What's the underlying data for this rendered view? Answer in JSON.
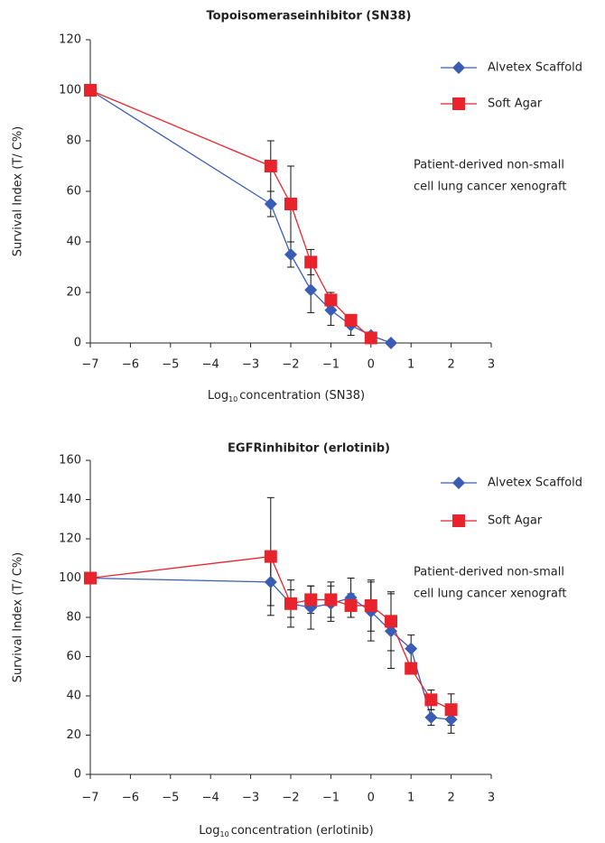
{
  "chart_data": [
    {
      "type": "line",
      "title": "Topoisomeraseinhibitor (SN38)",
      "xlabel": {
        "base": "Log",
        "sub": "10",
        "rest": "concentration  (SN38)"
      },
      "ylabel": "Survival Index (T/ C%)",
      "annotation": [
        "Patient-derived non-small",
        "cell lung cancer xenograft"
      ],
      "x": [
        -7,
        -2.5,
        -2,
        -1.5,
        -1,
        -0.5,
        0,
        0.5
      ],
      "series": [
        {
          "name": "Alvetex Scaffold",
          "color": "#3b5cb3",
          "marker": "diamond",
          "values": [
            100,
            55,
            35,
            21,
            13,
            7,
            3,
            0
          ],
          "errors": [
            null,
            5,
            5,
            9,
            6,
            4,
            1,
            null
          ]
        },
        {
          "name": "Soft Agar",
          "color": "#e8232b",
          "marker": "square",
          "values": [
            100,
            70,
            55,
            32,
            17,
            9,
            2,
            null
          ],
          "errors": [
            null,
            10,
            15,
            5,
            3,
            2,
            2,
            null
          ]
        }
      ],
      "xlim": [
        -7,
        3
      ],
      "xticks": [
        {
          "value": -7,
          "label": "−7"
        },
        {
          "value": -6,
          "label": "−6"
        },
        {
          "value": -5,
          "label": "−5"
        },
        {
          "value": -4,
          "label": "−4"
        },
        {
          "value": -3,
          "label": "−3"
        },
        {
          "value": -2,
          "label": "−2"
        },
        {
          "value": -1,
          "label": "−1"
        },
        0,
        1,
        2,
        3
      ],
      "ylim": [
        0,
        120
      ],
      "yticks": [
        0,
        20,
        40,
        60,
        80,
        100,
        120
      ],
      "grid": false,
      "legend": "right"
    },
    {
      "type": "line",
      "title": "EGFRinhibitor  (erlotinib)",
      "xlabel": {
        "base": "Log",
        "sub": "10",
        "rest": "concentration (erlotinib)"
      },
      "ylabel": "Survival Index (T/ C%)",
      "annotation": [
        "Patient-derived non-small",
        "cell lung cancer xenograft"
      ],
      "x": [
        -7,
        -2.5,
        -2,
        -1.5,
        -1,
        -0.5,
        0,
        0.5,
        1,
        1.5,
        2
      ],
      "series": [
        {
          "name": "Alvetex Scaffold",
          "color": "#3b5cb3",
          "marker": "diamond",
          "values": [
            100,
            98,
            87,
            85,
            87,
            90,
            83,
            73,
            64,
            29,
            28
          ],
          "errors": [
            null,
            12,
            7,
            11,
            9,
            10,
            15,
            19,
            7,
            4,
            7
          ]
        },
        {
          "name": "Soft Agar",
          "color": "#e8232b",
          "marker": "square",
          "values": [
            100,
            111,
            87,
            89,
            89,
            86,
            86,
            78,
            54,
            38,
            33
          ],
          "errors": [
            null,
            30,
            12,
            7,
            9,
            6,
            13,
            15,
            null,
            5,
            8
          ]
        }
      ],
      "xlim": [
        -7,
        3
      ],
      "xticks": [
        {
          "value": -7,
          "label": "−7"
        },
        {
          "value": -6,
          "label": "−6"
        },
        {
          "value": -5,
          "label": "−5"
        },
        {
          "value": -4,
          "label": "−4"
        },
        {
          "value": -3,
          "label": "−3"
        },
        {
          "value": -2,
          "label": "−2"
        },
        {
          "value": -1,
          "label": "−1"
        },
        0,
        1,
        2,
        3
      ],
      "ylim": [
        0,
        160
      ],
      "yticks": [
        0,
        20,
        40,
        60,
        80,
        100,
        120,
        140,
        160
      ],
      "grid": false,
      "legend": "right"
    }
  ]
}
